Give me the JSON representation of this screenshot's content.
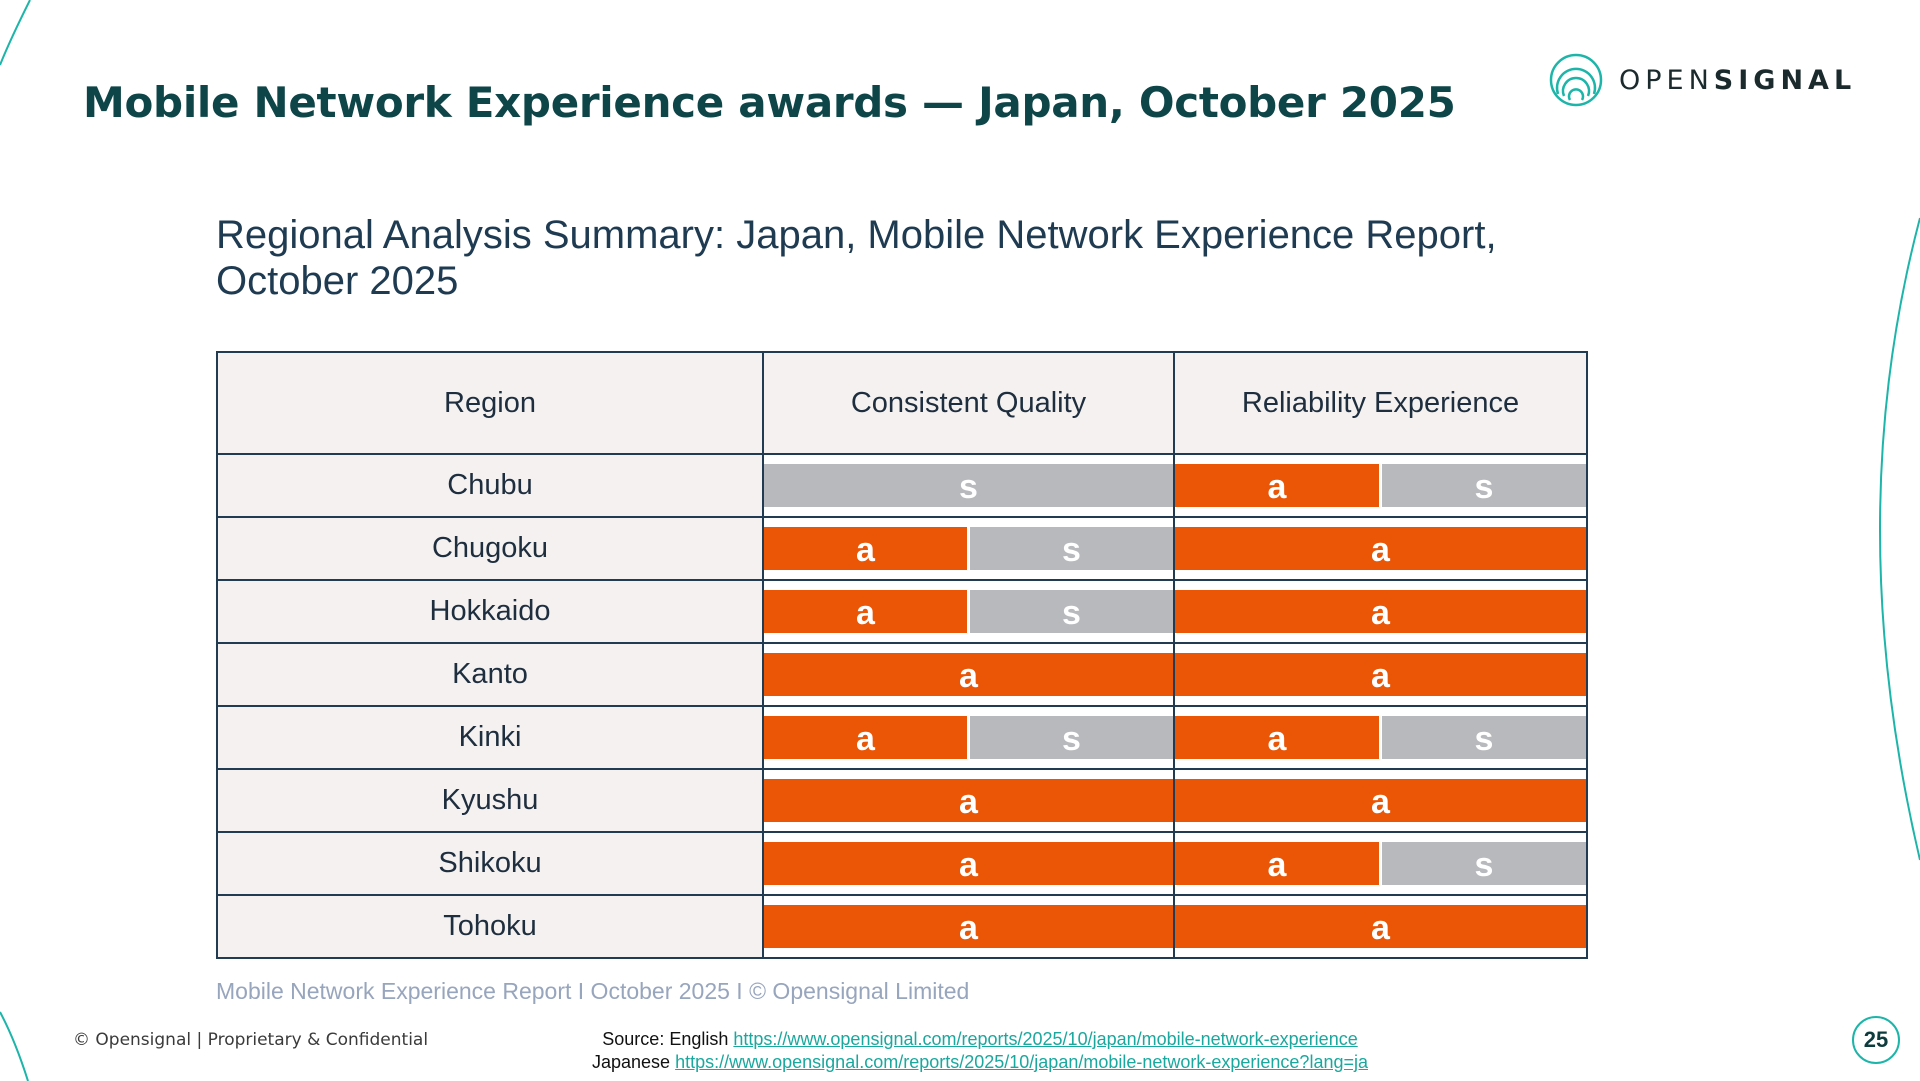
{
  "header": {
    "title": "Mobile Network Experience awards — Japan, October 2025",
    "logo_prefix": "OPEN",
    "logo_suffix": "SIGNAL"
  },
  "section_title": "Regional Analysis Summary: Japan, Mobile Network Experience Report, October 2025",
  "table": {
    "columns": [
      "Region",
      "Consistent Quality",
      "Reliability Experience"
    ],
    "rows": [
      {
        "region": "Chubu",
        "consistent_quality": [
          "s"
        ],
        "reliability_experience": [
          "a",
          "s"
        ]
      },
      {
        "region": "Chugoku",
        "consistent_quality": [
          "a",
          "s"
        ],
        "reliability_experience": [
          "a"
        ]
      },
      {
        "region": "Hokkaido",
        "consistent_quality": [
          "a",
          "s"
        ],
        "reliability_experience": [
          "a"
        ]
      },
      {
        "region": "Kanto",
        "consistent_quality": [
          "a"
        ],
        "reliability_experience": [
          "a"
        ]
      },
      {
        "region": "Kinki",
        "consistent_quality": [
          "a",
          "s"
        ],
        "reliability_experience": [
          "a",
          "s"
        ]
      },
      {
        "region": "Kyushu",
        "consistent_quality": [
          "a"
        ],
        "reliability_experience": [
          "a"
        ]
      },
      {
        "region": "Shikoku",
        "consistent_quality": [
          "a"
        ],
        "reliability_experience": [
          "a",
          "s"
        ]
      },
      {
        "region": "Tohoku",
        "consistent_quality": [
          "a"
        ],
        "reliability_experience": [
          "a"
        ]
      }
    ]
  },
  "colors": {
    "a": "#ea5506",
    "s": "#b8b9bc",
    "title": "#0d4548",
    "accent": "#1db5a9"
  },
  "caption": "Mobile Network Experience Report I October 2025 I © Opensignal Limited",
  "footer": {
    "left": "© Opensignal | Proprietary & Confidential",
    "source_label_en": "Source: English",
    "source_url_en": "https://www.opensignal.com/reports/2025/10/japan/mobile-network-experience",
    "source_label_ja": "Japanese",
    "source_url_ja": "https://www.opensignal.com/reports/2025/10/japan/mobile-network-experience?lang=ja",
    "page_number": "25"
  }
}
